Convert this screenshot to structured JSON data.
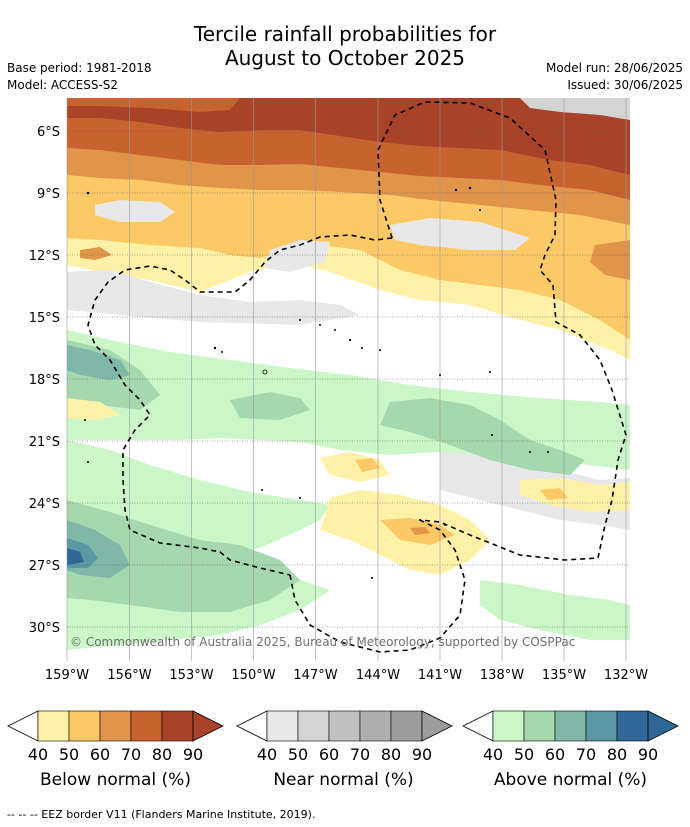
{
  "title_line1": "Tercile rainfall probabilities for",
  "title_line2": "August to October 2025",
  "base_period": "Base period: 1981-2018",
  "model": "Model: ACCESS-S2",
  "model_run": "Model run: 28/06/2025",
  "issued": "Issued: 30/06/2025",
  "copyright": "© Commonwealth of Australia 2025, Bureau of Meteorology, supported by COSPPac",
  "footer": "--  --  -- EEZ border V11 (Flanders Marine Institute, 2019).",
  "lat_labels": [
    "6°S",
    "9°S",
    "12°S",
    "15°S",
    "18°S",
    "21°S",
    "24°S",
    "27°S",
    "30°S"
  ],
  "lon_labels": [
    "159°W",
    "156°W",
    "153°W",
    "150°W",
    "147°W",
    "144°W",
    "141°W",
    "138°W",
    "135°W",
    "132°W"
  ],
  "colorbars": [
    {
      "label": "Below normal (%)",
      "ticks": [
        "40",
        "50",
        "60",
        "70",
        "80",
        "90"
      ],
      "colors": [
        "#fff2a8",
        "#fdc966",
        "#e0954a",
        "#c8622e",
        "#a8432a"
      ]
    },
    {
      "label": "Near normal (%)",
      "ticks": [
        "40",
        "50",
        "60",
        "70",
        "80",
        "90"
      ],
      "colors": [
        "#e8e8e8",
        "#d4d4d4",
        "#c0c0c0",
        "#aeaeae",
        "#9c9c9c"
      ]
    },
    {
      "label": "Above normal (%)",
      "ticks": [
        "40",
        "50",
        "60",
        "70",
        "80",
        "90"
      ],
      "colors": [
        "#cbf7c8",
        "#a6d8b0",
        "#7fb8a8",
        "#5a98a4",
        "#2f6797"
      ]
    }
  ]
}
